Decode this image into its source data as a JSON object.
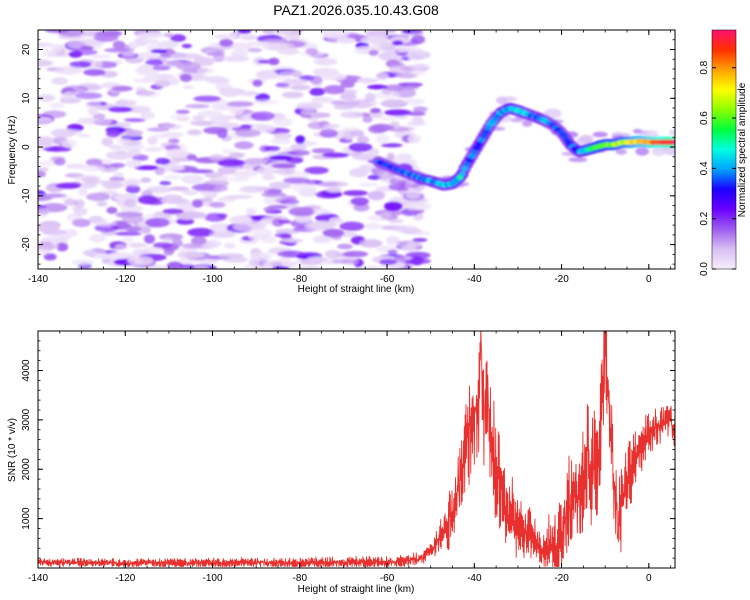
{
  "title": "PAZ1.2026.035.10.43.G08",
  "chart_data": [
    {
      "type": "heatmap",
      "xlabel": "Height of straight line (km)",
      "ylabel": "Frequency (Hz)",
      "xlim": [
        -140,
        6
      ],
      "ylim": [
        -25,
        24
      ],
      "x_ticks": [
        -140,
        -120,
        -100,
        -80,
        -60,
        -40,
        -20,
        0
      ],
      "y_ticks": [
        -20,
        -10,
        0,
        10,
        20
      ],
      "colorbar": {
        "label": "Normalized spectral amplitude",
        "range": [
          0,
          0.95
        ],
        "ticks": [
          0.0,
          0.2,
          0.4,
          0.6,
          0.8
        ],
        "colors": [
          "#f6eefc",
          "#d9bff3",
          "#9e5cef",
          "#6a00ff",
          "#1a00ff",
          "#00a2ff",
          "#00ffe0",
          "#00ff3c",
          "#8cff00",
          "#ffff00",
          "#ffa000",
          "#ff3000",
          "#ff1070"
        ]
      },
      "noise_region": {
        "x": [
          -140,
          -52
        ],
        "y": [
          -25,
          24
        ],
        "level": "low amplitude 0.02-0.25"
      },
      "signal_trace": {
        "x": [
          -62,
          -58,
          -55,
          -52,
          -49,
          -47,
          -45,
          -43,
          -42,
          -40,
          -38,
          -36,
          -34,
          -32,
          -30,
          -28,
          -26,
          -24,
          -22,
          -20,
          -18,
          -16,
          -14,
          -12,
          -10,
          -8,
          -6,
          -4,
          -2,
          0,
          2,
          4,
          6
        ],
        "frequency": [
          -3,
          -4.5,
          -5.5,
          -6.5,
          -7.2,
          -7.8,
          -7.5,
          -6,
          -4,
          -1,
          2,
          5,
          7,
          8,
          7.5,
          6.8,
          6.2,
          5.5,
          4.5,
          3,
          0.5,
          -1,
          -0.5,
          0,
          0.5,
          0.5,
          1,
          1,
          1.2,
          1,
          1,
          1,
          1
        ],
        "amplitude": [
          0.3,
          0.32,
          0.34,
          0.36,
          0.38,
          0.4,
          0.42,
          0.45,
          0.38,
          0.35,
          0.36,
          0.35,
          0.38,
          0.42,
          0.45,
          0.4,
          0.35,
          0.38,
          0.32,
          0.3,
          0.34,
          0.36,
          0.5,
          0.55,
          0.6,
          0.62,
          0.65,
          0.7,
          0.75,
          0.8,
          0.85,
          0.88,
          0.9
        ]
      }
    },
    {
      "type": "line",
      "xlabel": "Height of straight line (km)",
      "ylabel": "SNR (10 * v/v)",
      "xlim": [
        -140,
        6
      ],
      "ylim": [
        0,
        4800
      ],
      "x_ticks": [
        -140,
        -120,
        -100,
        -80,
        -60,
        -40,
        -20,
        0
      ],
      "y_ticks": [
        1000,
        2000,
        3000,
        4000
      ],
      "color": "#e8302e",
      "series": [
        {
          "name": "SNR",
          "x": [
            -140,
            -130,
            -120,
            -110,
            -100,
            -90,
            -80,
            -70,
            -60,
            -55,
            -52,
            -50,
            -48,
            -46,
            -44,
            -43,
            -42,
            -41,
            -40,
            -39,
            -38.5,
            -38,
            -37,
            -36,
            -35,
            -34,
            -33,
            -32,
            -31,
            -30,
            -29,
            -28,
            -27,
            -26,
            -25,
            -24,
            -23,
            -22,
            -21,
            -20,
            -19,
            -18,
            -17,
            -16,
            -15,
            -14,
            -13,
            -12,
            -11,
            -10,
            -9,
            -8,
            -7,
            -6,
            -5,
            -4,
            -3,
            -2,
            -1,
            0,
            1,
            2,
            3,
            4,
            5,
            6
          ],
          "y": [
            120,
            110,
            100,
            110,
            100,
            110,
            100,
            110,
            120,
            150,
            200,
            350,
            600,
            900,
            1400,
            1900,
            2300,
            2800,
            3100,
            3500,
            4900,
            3000,
            3300,
            2600,
            2000,
            1600,
            1300,
            1000,
            1100,
            900,
            700,
            800,
            650,
            500,
            450,
            400,
            500,
            450,
            400,
            700,
            1000,
            1300,
            1700,
            1500,
            1800,
            2200,
            1900,
            2300,
            2800,
            4700,
            3200,
            1800,
            800,
            1500,
            1800,
            2000,
            2200,
            2400,
            2600,
            2700,
            2800,
            2900,
            2950,
            3000,
            3050,
            2700
          ]
        }
      ],
      "noise_amplitude": [
        [
          -140,
          60
        ],
        [
          -50,
          100
        ],
        [
          -45,
          500
        ],
        [
          -40,
          900
        ],
        [
          -35,
          900
        ],
        [
          -30,
          500
        ],
        [
          -25,
          300
        ],
        [
          -20,
          700
        ],
        [
          -15,
          900
        ],
        [
          -10,
          1000
        ],
        [
          -5,
          600
        ],
        [
          0,
          350
        ],
        [
          6,
          250
        ]
      ]
    }
  ]
}
